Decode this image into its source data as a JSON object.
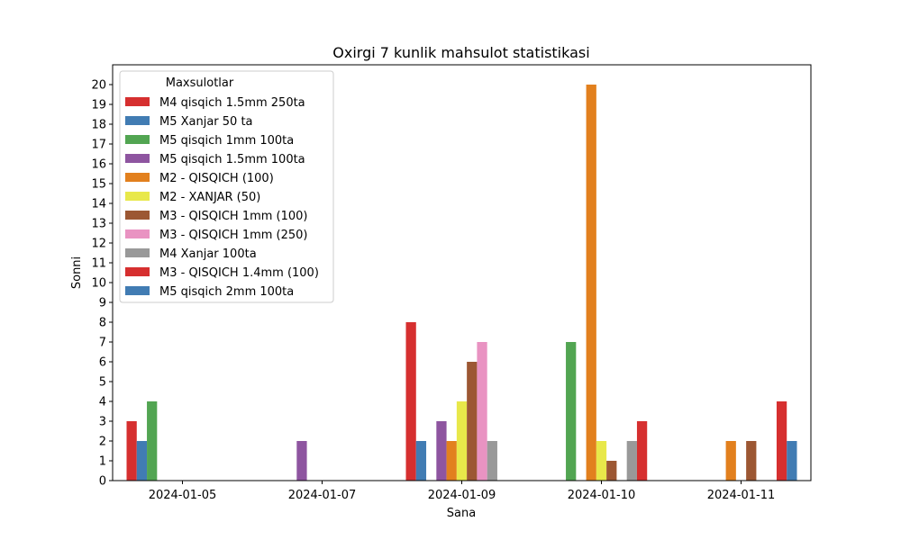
{
  "chart_data": {
    "type": "bar",
    "title": "Oxirgi 7 kunlik mahsulot statistikasi",
    "xlabel": "Sana",
    "ylabel": "Sonni",
    "ylim": [
      0,
      21
    ],
    "yticks": [
      0,
      1,
      2,
      3,
      4,
      5,
      6,
      7,
      8,
      9,
      10,
      11,
      12,
      13,
      14,
      15,
      16,
      17,
      18,
      19,
      20
    ],
    "grid": false,
    "legend_title": "Maxsulotlar",
    "legend_position": "upper-left",
    "categories": [
      "2024-01-05",
      "2024-01-07",
      "2024-01-09",
      "2024-01-10",
      "2024-01-11"
    ],
    "series": [
      {
        "name": "M4 qisqich 1.5mm 250ta",
        "color": "#d62f2f",
        "values": [
          3,
          0,
          8,
          0,
          0
        ]
      },
      {
        "name": "M5 Xanjar 50 ta",
        "color": "#417cb3",
        "values": [
          2,
          0,
          2,
          0,
          0
        ]
      },
      {
        "name": "M5 qisqich 1mm 100ta",
        "color": "#52a552",
        "values": [
          4,
          0,
          0,
          7,
          0
        ]
      },
      {
        "name": "M5 qisqich 1.5mm 100ta",
        "color": "#8e55a0",
        "values": [
          0,
          2,
          3,
          0,
          0
        ]
      },
      {
        "name": "M2 - QISQICH (100)",
        "color": "#e2801e",
        "values": [
          0,
          0,
          2,
          20,
          2
        ]
      },
      {
        "name": "M2 - XANJAR (50)",
        "color": "#e8e84a",
        "values": [
          0,
          0,
          4,
          2,
          0
        ]
      },
      {
        "name": "M3 - QISQICH 1mm (100)",
        "color": "#9c5733",
        "values": [
          0,
          0,
          6,
          1,
          2
        ]
      },
      {
        "name": "M3 - QISQICH 1mm (250)",
        "color": "#e993c2",
        "values": [
          0,
          0,
          7,
          0,
          0
        ]
      },
      {
        "name": "M4 Xanjar 100ta",
        "color": "#999999",
        "values": [
          0,
          0,
          2,
          2,
          0
        ]
      },
      {
        "name": "M3 - QISQICH 1.4mm (100)",
        "color": "#d62f2f",
        "values": [
          0,
          0,
          0,
          3,
          4
        ]
      },
      {
        "name": "M5 qisqich 2mm 100ta",
        "color": "#417cb3",
        "values": [
          0,
          0,
          0,
          0,
          2
        ]
      }
    ]
  }
}
